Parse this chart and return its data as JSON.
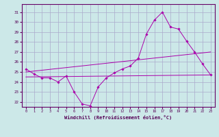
{
  "xlabel": "Windchill (Refroidissement éolien,°C)",
  "background_color": "#cce8e8",
  "line_color": "#aa00aa",
  "grid_color": "#aaaacc",
  "ylim": [
    21.5,
    31.8
  ],
  "xlim": [
    -0.5,
    23.5
  ],
  "yticks": [
    22,
    23,
    24,
    25,
    26,
    27,
    28,
    29,
    30,
    31
  ],
  "xticks": [
    0,
    1,
    2,
    3,
    4,
    5,
    6,
    7,
    8,
    9,
    10,
    11,
    12,
    13,
    14,
    15,
    16,
    17,
    18,
    19,
    20,
    21,
    22,
    23
  ],
  "y_main": [
    25.3,
    24.8,
    24.4,
    24.4,
    24.0,
    24.6,
    23.0,
    21.8,
    21.6,
    23.5,
    24.4,
    24.9,
    25.3,
    25.6,
    26.4,
    28.8,
    30.2,
    31.0,
    29.5,
    29.3,
    28.1,
    27.0,
    25.8,
    24.7
  ],
  "trend1_x": [
    0,
    23
  ],
  "trend1_y": [
    25.0,
    27.0
  ],
  "trend2_x": [
    0,
    23
  ],
  "trend2_y": [
    24.5,
    24.7
  ]
}
